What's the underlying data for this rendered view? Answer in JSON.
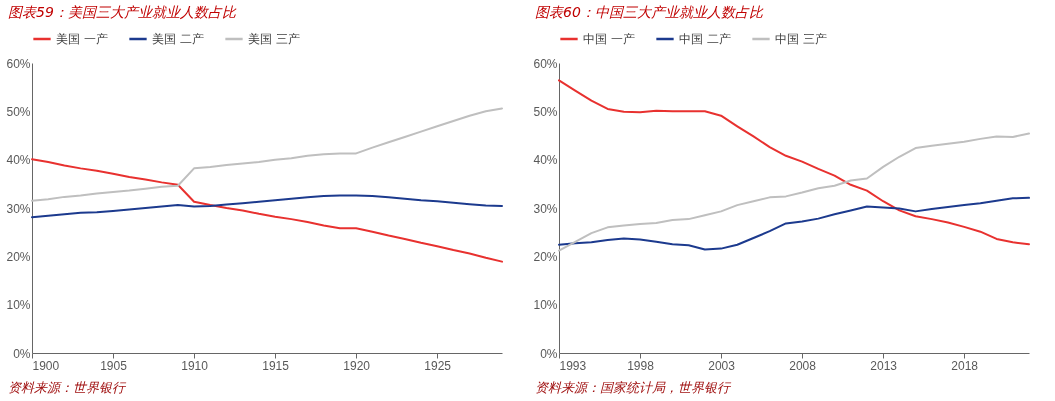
{
  "chart_data": [
    {
      "type": "line",
      "title": "图表59：美国三大产业就业人数占比",
      "annotations": [
        "资料来源：世界银行"
      ],
      "legend": "top",
      "line_style": "solid",
      "marker": "none",
      "grid": false,
      "x": [
        1900,
        1901,
        1902,
        1903,
        1904,
        1905,
        1906,
        1907,
        1908,
        1909,
        1910,
        1911,
        1912,
        1913,
        1914,
        1915,
        1916,
        1917,
        1918,
        1919,
        1920,
        1921,
        1922,
        1923,
        1924,
        1925,
        1926,
        1927,
        1928,
        1929
      ],
      "xlim": [
        1900,
        1929
      ],
      "xticks": [
        1900,
        1905,
        1910,
        1915,
        1920,
        1925
      ],
      "ylim": [
        0,
        60
      ],
      "yticks": [
        {
          "value": 0,
          "label": "0%"
        },
        {
          "value": 10,
          "label": "10%"
        },
        {
          "value": 20,
          "label": "20%"
        },
        {
          "value": 30,
          "label": "30%"
        },
        {
          "value": 40,
          "label": "40%"
        },
        {
          "value": 50,
          "label": "50%"
        },
        {
          "value": 60,
          "label": "60%"
        }
      ],
      "series": [
        {
          "name": "美国 一产",
          "color": "#e8312f",
          "values": [
            40.1,
            39.5,
            38.8,
            38.2,
            37.7,
            37.1,
            36.4,
            35.9,
            35.3,
            34.8,
            31.3,
            30.6,
            30.0,
            29.5,
            28.8,
            28.2,
            27.7,
            27.1,
            26.4,
            25.8,
            25.8,
            25.1,
            24.3,
            23.6,
            22.8,
            22.1,
            21.3,
            20.6,
            19.7,
            18.9
          ]
        },
        {
          "name": "美国 二产",
          "color": "#1c3a8e",
          "values": [
            28.1,
            28.4,
            28.7,
            29.0,
            29.1,
            29.4,
            29.7,
            30.0,
            30.3,
            30.6,
            30.3,
            30.4,
            30.7,
            31.0,
            31.3,
            31.6,
            31.9,
            32.2,
            32.5,
            32.6,
            32.6,
            32.5,
            32.2,
            31.9,
            31.6,
            31.4,
            31.1,
            30.8,
            30.5,
            30.4
          ]
        },
        {
          "name": "美国 三产",
          "color": "#bfbfbf",
          "values": [
            31.5,
            31.8,
            32.3,
            32.6,
            33.0,
            33.3,
            33.6,
            34.0,
            34.4,
            34.6,
            38.2,
            38.5,
            38.9,
            39.2,
            39.5,
            40.0,
            40.3,
            40.8,
            41.1,
            41.3,
            41.3,
            42.5,
            43.6,
            44.7,
            45.8,
            46.9,
            48.0,
            49.1,
            50.0,
            50.6
          ]
        }
      ]
    },
    {
      "type": "line",
      "title": "图表60：中国三大产业就业人数占比",
      "annotations": [
        "资料来源：国家统计局，世界银行"
      ],
      "legend": "top",
      "line_style": "solid",
      "marker": "none",
      "grid": false,
      "x": [
        1993,
        1994,
        1995,
        1996,
        1997,
        1998,
        1999,
        2000,
        2001,
        2002,
        2003,
        2004,
        2005,
        2006,
        2007,
        2008,
        2009,
        2010,
        2011,
        2012,
        2013,
        2014,
        2015,
        2016,
        2017,
        2018,
        2019,
        2020,
        2021,
        2022
      ],
      "xlim": [
        1993,
        2022
      ],
      "xticks": [
        1993,
        1998,
        2003,
        2008,
        2013,
        2018
      ],
      "ylim": [
        0,
        60
      ],
      "yticks": [
        {
          "value": 0,
          "label": "0%"
        },
        {
          "value": 10,
          "label": "10%"
        },
        {
          "value": 20,
          "label": "20%"
        },
        {
          "value": 30,
          "label": "30%"
        },
        {
          "value": 40,
          "label": "40%"
        },
        {
          "value": 50,
          "label": "50%"
        },
        {
          "value": 60,
          "label": "60%"
        }
      ],
      "series": [
        {
          "name": "中国 一产",
          "color": "#e8312f",
          "values": [
            56.4,
            54.3,
            52.2,
            50.5,
            49.9,
            49.8,
            50.1,
            50.0,
            50.0,
            50.0,
            49.1,
            46.9,
            44.8,
            42.6,
            40.8,
            39.6,
            38.1,
            36.7,
            34.8,
            33.6,
            31.4,
            29.5,
            28.3,
            27.7,
            27.0,
            26.1,
            25.1,
            23.6,
            22.9,
            22.5
          ]
        },
        {
          "name": "中国 二产",
          "color": "#1c3a8e",
          "values": [
            22.4,
            22.7,
            22.9,
            23.4,
            23.7,
            23.5,
            23.0,
            22.5,
            22.3,
            21.4,
            21.6,
            22.4,
            23.8,
            25.2,
            26.8,
            27.2,
            27.8,
            28.7,
            29.5,
            30.3,
            30.1,
            29.9,
            29.3,
            29.8,
            30.2,
            30.6,
            31.0,
            31.5,
            32.0,
            32.1
          ]
        },
        {
          "name": "中国 三产",
          "color": "#bfbfbf",
          "values": [
            21.2,
            23.0,
            24.8,
            26.0,
            26.4,
            26.7,
            26.9,
            27.5,
            27.7,
            28.5,
            29.3,
            30.6,
            31.4,
            32.2,
            32.4,
            33.2,
            34.1,
            34.6,
            35.7,
            36.1,
            38.5,
            40.6,
            42.4,
            42.9,
            43.3,
            43.7,
            44.3,
            44.8,
            44.7,
            45.4
          ]
        }
      ]
    }
  ]
}
